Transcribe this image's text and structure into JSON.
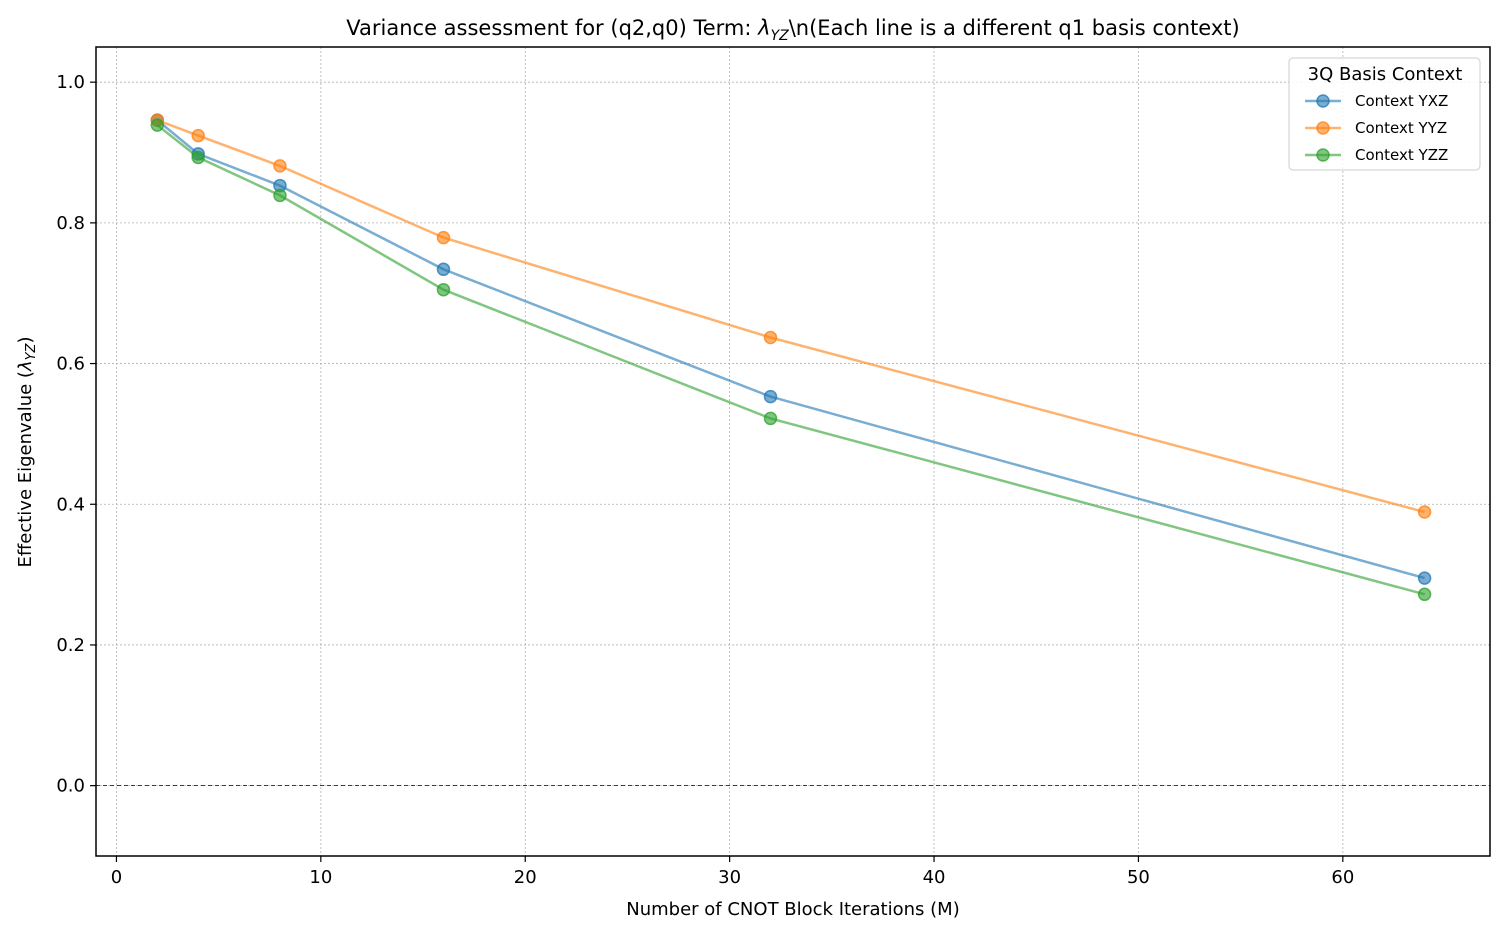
{
  "chart_data": {
    "type": "line",
    "title_parts": {
      "before": "Variance assessment for (q2,q0) Term: ",
      "symbol": "λ",
      "subscript": "YZ",
      "after": "\\n(Each line is a different q1 basis context)"
    },
    "xlabel": "Number of CNOT Block Iterations (M)",
    "ylabel_parts": {
      "before": "Effective Eigenvalue (",
      "symbol": "λ",
      "subscript": "YZ",
      "after": ")"
    },
    "xlim": [
      -1,
      67.2
    ],
    "ylim": [
      -0.1,
      1.05
    ],
    "xticks": [
      0,
      10,
      20,
      30,
      40,
      50,
      60
    ],
    "yticks": [
      0.0,
      0.2,
      0.4,
      0.6,
      0.8,
      1.0
    ],
    "xtick_labels": [
      "0",
      "10",
      "20",
      "30",
      "40",
      "50",
      "60"
    ],
    "ytick_labels": [
      "0.0",
      "0.2",
      "0.4",
      "0.6",
      "0.8",
      "1.0"
    ],
    "grid": true,
    "reference_line_y": 0.0,
    "legend": {
      "title": "3Q Basis Context",
      "placement": "top-right"
    },
    "x": [
      2,
      4,
      8,
      16,
      32,
      64
    ],
    "series": [
      {
        "name": "Context YXZ",
        "color": "#1f77b4",
        "values": [
          0.946,
          0.898,
          0.853,
          0.734,
          0.553,
          0.295
        ]
      },
      {
        "name": "Context YYZ",
        "color": "#ff7f0e",
        "values": [
          0.946,
          0.924,
          0.881,
          0.779,
          0.637,
          0.389
        ]
      },
      {
        "name": "Context YZZ",
        "color": "#2ca02c",
        "values": [
          0.939,
          0.893,
          0.839,
          0.705,
          0.522,
          0.272
        ]
      }
    ]
  }
}
